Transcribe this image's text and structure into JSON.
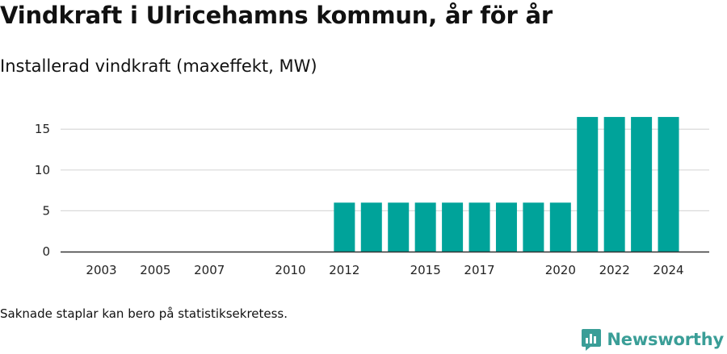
{
  "title": "Vindkraft i Ulricehamns kommun, år för år",
  "subtitle": "Installerad vindkraft (maxeffekt, MW)",
  "footnote": "Saknade staplar kan bero på statistiksekretess.",
  "brand": {
    "name": "Newsworthy",
    "icon": "newsworthy-logo-icon",
    "color": "#3a9e97"
  },
  "chart_data": {
    "type": "bar",
    "x": [
      2003,
      2004,
      2005,
      2006,
      2007,
      2008,
      2009,
      2010,
      2011,
      2012,
      2013,
      2014,
      2015,
      2016,
      2017,
      2018,
      2019,
      2020,
      2021,
      2022,
      2023,
      2024
    ],
    "values": [
      0,
      0,
      0,
      0,
      0,
      0,
      0,
      0,
      0,
      6,
      6,
      6,
      6,
      6,
      6,
      6,
      6,
      6,
      16.5,
      16.5,
      16.5,
      16.5
    ],
    "x_tick_labels": [
      "2003",
      "2005",
      "2007",
      "2010",
      "2012",
      "2015",
      "2017",
      "2020",
      "2022",
      "2024"
    ],
    "y_ticks": [
      0,
      5,
      10,
      15
    ],
    "ylim": [
      0,
      17
    ],
    "xlabel": "",
    "ylabel": "",
    "grid": true,
    "bar_color": "#00a39a",
    "grid_color": "#d9d9d9",
    "axis_color": "#333333"
  }
}
